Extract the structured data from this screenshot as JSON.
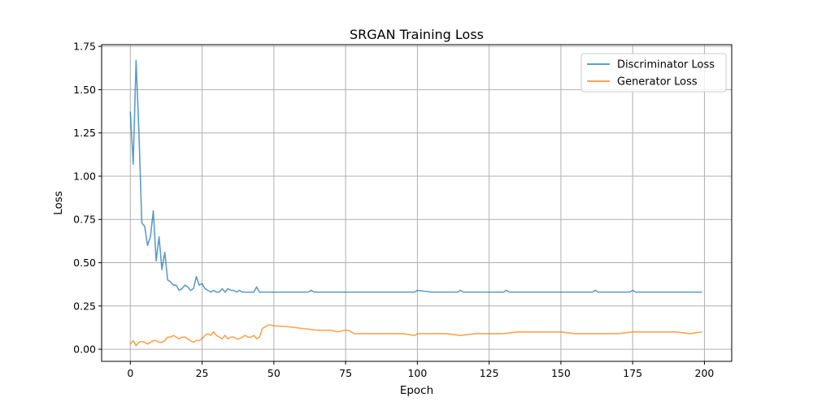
{
  "chart_data": {
    "type": "line",
    "title": "SRGAN Training Loss",
    "xlabel": "Epoch",
    "ylabel": "Loss",
    "xlim": [
      -10,
      209.5
    ],
    "ylim": [
      -0.07,
      1.76
    ],
    "xticks": [
      0,
      25,
      50,
      75,
      100,
      125,
      150,
      175,
      200
    ],
    "yticks": [
      0.0,
      0.25,
      0.5,
      0.75,
      1.0,
      1.25,
      1.5,
      1.75
    ],
    "ytick_labels": [
      "0.00",
      "0.25",
      "0.50",
      "0.75",
      "1.00",
      "1.25",
      "1.50",
      "1.75"
    ],
    "grid": true,
    "legend_position": "upper right",
    "series": [
      {
        "name": "Discriminator Loss",
        "color": "#1f77b4",
        "x": [
          0,
          1,
          2,
          3,
          4,
          5,
          6,
          7,
          8,
          9,
          10,
          11,
          12,
          13,
          14,
          15,
          16,
          17,
          18,
          19,
          20,
          21,
          22,
          23,
          24,
          25,
          26,
          27,
          28,
          29,
          30,
          31,
          32,
          33,
          34,
          35,
          36,
          37,
          38,
          39,
          40,
          41,
          42,
          43,
          44,
          45,
          46,
          47,
          48,
          49,
          50,
          55,
          60,
          62,
          63,
          64,
          65,
          70,
          75,
          80,
          85,
          90,
          95,
          99,
          100,
          105,
          110,
          114,
          115,
          116,
          120,
          125,
          128,
          129,
          130,
          131,
          132,
          133,
          134,
          135,
          140,
          145,
          150,
          155,
          160,
          161,
          162,
          163,
          165,
          170,
          174,
          175,
          176,
          180,
          185,
          190,
          195,
          199
        ],
        "y": [
          1.37,
          1.07,
          1.67,
          1.25,
          0.73,
          0.71,
          0.6,
          0.65,
          0.8,
          0.51,
          0.65,
          0.46,
          0.56,
          0.4,
          0.39,
          0.37,
          0.37,
          0.34,
          0.35,
          0.37,
          0.36,
          0.34,
          0.35,
          0.42,
          0.37,
          0.38,
          0.35,
          0.34,
          0.33,
          0.34,
          0.33,
          0.33,
          0.35,
          0.33,
          0.35,
          0.34,
          0.34,
          0.33,
          0.34,
          0.33,
          0.33,
          0.33,
          0.33,
          0.33,
          0.36,
          0.33,
          0.33,
          0.33,
          0.33,
          0.33,
          0.33,
          0.33,
          0.33,
          0.33,
          0.34,
          0.33,
          0.33,
          0.33,
          0.33,
          0.33,
          0.33,
          0.33,
          0.33,
          0.33,
          0.34,
          0.33,
          0.33,
          0.33,
          0.34,
          0.33,
          0.33,
          0.33,
          0.33,
          0.33,
          0.33,
          0.34,
          0.33,
          0.33,
          0.33,
          0.33,
          0.33,
          0.33,
          0.33,
          0.33,
          0.33,
          0.33,
          0.34,
          0.33,
          0.33,
          0.33,
          0.33,
          0.34,
          0.33,
          0.33,
          0.33,
          0.33,
          0.33,
          0.33
        ]
      },
      {
        "name": "Generator Loss",
        "color": "#ff7f0e",
        "x": [
          0,
          1,
          2,
          3,
          4,
          5,
          6,
          7,
          8,
          9,
          10,
          11,
          12,
          13,
          14,
          15,
          16,
          17,
          18,
          19,
          20,
          21,
          22,
          23,
          24,
          25,
          26,
          27,
          28,
          29,
          30,
          31,
          32,
          33,
          34,
          35,
          36,
          37,
          38,
          39,
          40,
          41,
          42,
          43,
          44,
          45,
          46,
          47,
          48,
          49,
          50,
          55,
          60,
          65,
          70,
          72,
          75,
          76,
          78,
          80,
          85,
          90,
          95,
          99,
          100,
          105,
          110,
          115,
          120,
          125,
          130,
          135,
          140,
          145,
          150,
          155,
          160,
          165,
          170,
          175,
          180,
          185,
          190,
          195,
          199
        ],
        "y": [
          0.03,
          0.05,
          0.02,
          0.04,
          0.045,
          0.04,
          0.03,
          0.04,
          0.05,
          0.05,
          0.04,
          0.04,
          0.05,
          0.07,
          0.07,
          0.08,
          0.07,
          0.06,
          0.07,
          0.07,
          0.06,
          0.05,
          0.04,
          0.05,
          0.05,
          0.06,
          0.08,
          0.09,
          0.08,
          0.1,
          0.08,
          0.07,
          0.06,
          0.08,
          0.06,
          0.07,
          0.07,
          0.06,
          0.06,
          0.07,
          0.08,
          0.07,
          0.07,
          0.08,
          0.06,
          0.07,
          0.12,
          0.13,
          0.14,
          0.14,
          0.135,
          0.13,
          0.12,
          0.11,
          0.11,
          0.1,
          0.11,
          0.11,
          0.09,
          0.09,
          0.09,
          0.09,
          0.09,
          0.08,
          0.09,
          0.09,
          0.09,
          0.08,
          0.09,
          0.09,
          0.09,
          0.1,
          0.1,
          0.1,
          0.1,
          0.09,
          0.09,
          0.09,
          0.09,
          0.1,
          0.1,
          0.1,
          0.1,
          0.09,
          0.1
        ]
      }
    ]
  }
}
